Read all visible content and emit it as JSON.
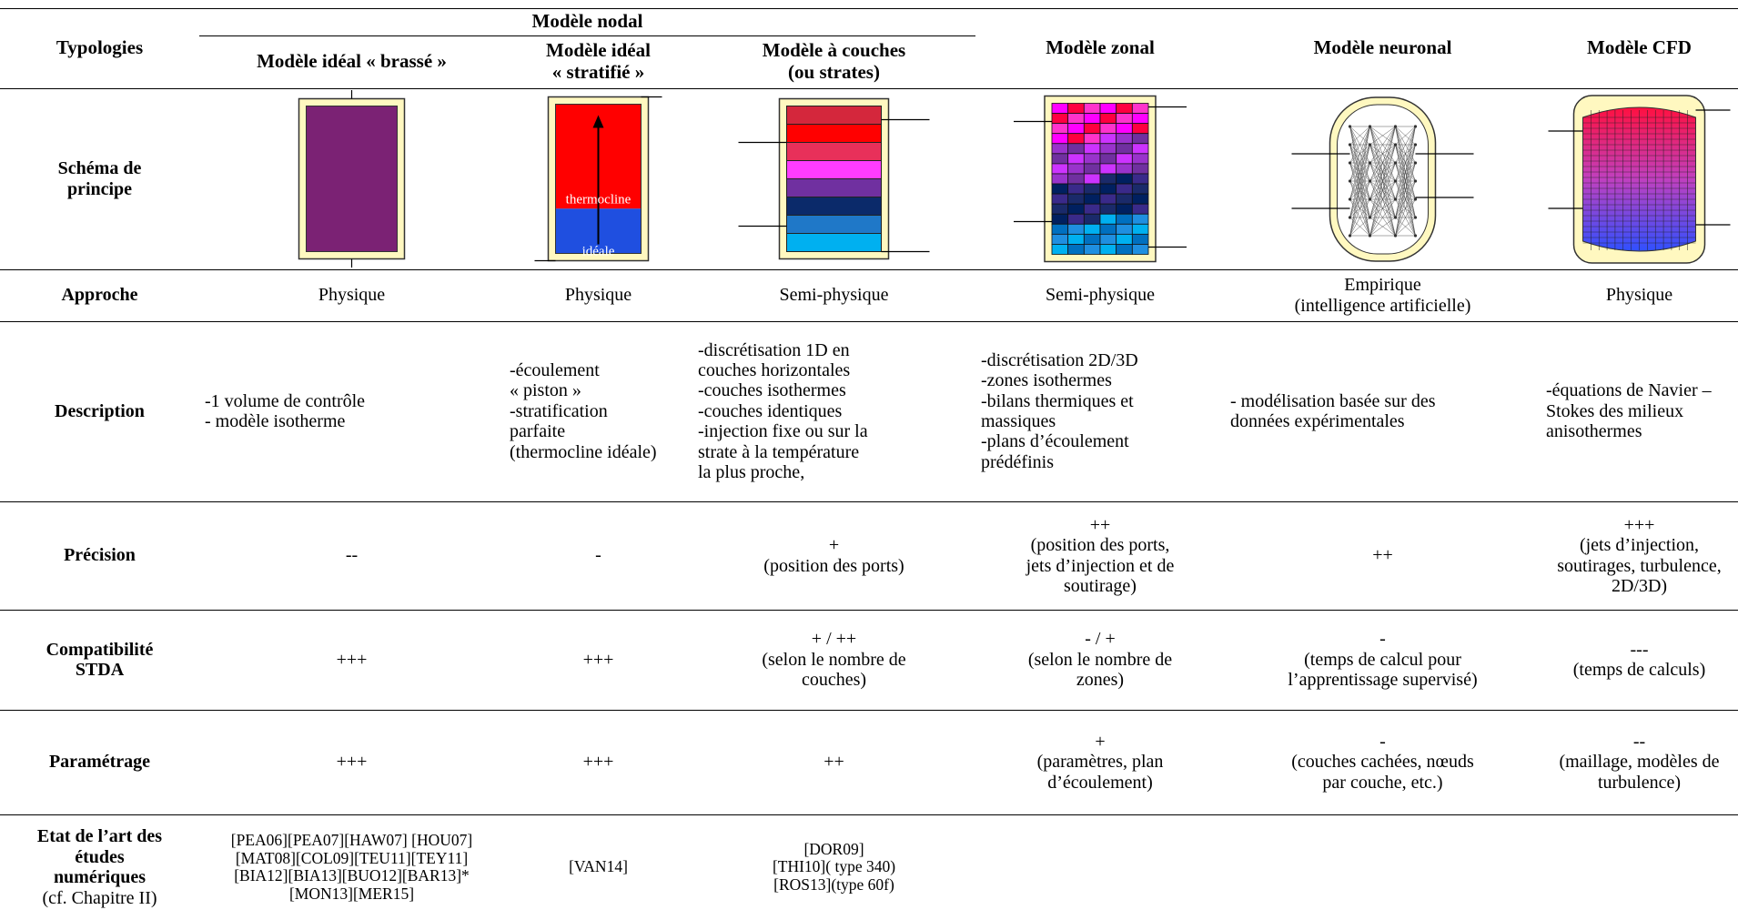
{
  "table": {
    "header": {
      "typologies": "Typologies",
      "group": "Modèle nodal",
      "columns": [
        "Modèle idéal « brassé »",
        "Modèle idéal\n« stratifié »",
        "Modèle à couches\n(ou strates)",
        "Modèle zonal",
        "Modèle neuronal",
        "Modèle CFD"
      ]
    },
    "schema_label": "Schéma de\nprincipe",
    "diagram_labels": [
      "thermocline",
      "idéale"
    ],
    "rows": [
      {
        "label": "Approche",
        "cells": [
          "Physique",
          "Physique",
          "Semi-physique",
          "Semi-physique",
          "Empirique\n(intelligence artificielle)",
          "Physique"
        ]
      },
      {
        "label": "Description",
        "cells": [
          "-1 volume de contrôle\n- modèle isotherme",
          "-écoulement\n« piston »\n-stratification\nparfaite\n(thermocline idéale)",
          "-discrétisation 1D en\ncouches horizontales\n-couches isothermes\n-couches identiques\n-injection fixe ou sur la\nstrate à la température\nla plus proche,",
          "-discrétisation 2D/3D\n-zones isothermes\n-bilans thermiques et\nmassiques\n-plans d’écoulement\nprédéfinis",
          "- modélisation basée sur des\ndonnées expérimentales",
          "-équations de Navier –\nStokes des milieux\nanisothermes"
        ]
      },
      {
        "label": "Précision",
        "cells": [
          "--",
          "-",
          "+\n(position des ports)",
          "++\n(position des ports,\njets d’injection et de\nsoutirage)",
          "++",
          "+++\n(jets d’injection,\nsoutirages, turbulence,\n2D/3D)"
        ]
      },
      {
        "label": "Compatibilité\nSTDA",
        "cells": [
          "+++",
          "+++",
          "+ / ++\n(selon le  nombre de\ncouches)",
          "- / +\n(selon le  nombre de\nzones)",
          "-\n(temps de calcul pour\nl’apprentissage supervisé)",
          "---\n(temps de calculs)"
        ]
      },
      {
        "label": "Paramétrage",
        "cells": [
          "+++",
          "+++",
          "++",
          "+\n(paramètres, plan\nd’écoulement)",
          "-\n(couches cachées, nœuds\npar couche, etc.)",
          "--\n(maillage, modèles de\nturbulence)"
        ]
      },
      {
        "label": "Etat de l’art des\nétudes\nnumériques",
        "note": "(cf. Chapitre II)",
        "cells": [
          "[PEA06][PEA07][HAW07] [HOU07]\n[MAT08][COL09][TEU11][TEY11]\n[BIA12][BIA13][BUO12][BAR13]*\n[MON13][MER15]",
          "[VAN14]",
          "[DOR09]\n[THI10]( type 340)\n[ROS13](type 60f)"
        ]
      }
    ]
  }
}
